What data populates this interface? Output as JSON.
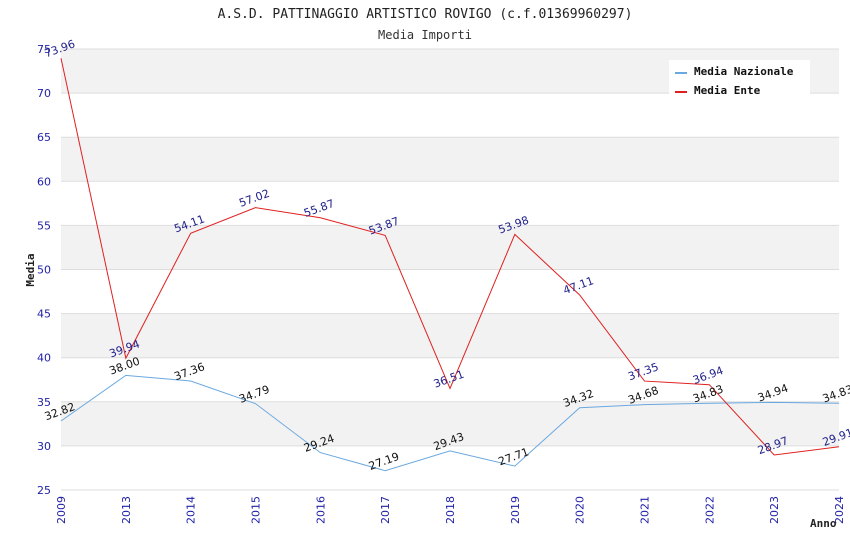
{
  "chart_data": {
    "type": "line",
    "title": "A.S.D. PATTINAGGIO ARTISTICO ROVIGO (c.f.01369960297)",
    "subtitle": "Media Importi",
    "xlabel": "Anno",
    "ylabel": "Media",
    "categories": [
      "2009",
      "2013",
      "2014",
      "2015",
      "2016",
      "2017",
      "2018",
      "2019",
      "2020",
      "2021",
      "2022",
      "2023",
      "2024"
    ],
    "ylim": [
      25,
      75
    ],
    "yticks": [
      "25",
      "30",
      "35",
      "40",
      "45",
      "50",
      "55",
      "60",
      "65",
      "70",
      "75"
    ],
    "grid": true,
    "legend_position": "top-right",
    "series": [
      {
        "name": "Media Nazionale",
        "color": "#6aa8e0",
        "label_color": "#111111",
        "values": [
          32.82,
          38.0,
          37.36,
          34.79,
          29.24,
          27.19,
          29.43,
          27.71,
          34.32,
          34.68,
          34.83,
          34.94,
          34.83
        ],
        "labels": [
          "32.82",
          "38.00",
          "37.36",
          "34.79",
          "29.24",
          "27.19",
          "29.43",
          "27.71",
          "34.32",
          "34.68",
          "34.83",
          "34.94",
          "34.83"
        ]
      },
      {
        "name": "Media Ente",
        "color": "#e02020",
        "label_color": "#1f1f8a",
        "values": [
          73.96,
          39.94,
          54.11,
          57.02,
          55.87,
          53.87,
          36.51,
          53.98,
          47.11,
          37.35,
          36.94,
          28.97,
          29.91
        ],
        "labels": [
          "73.96",
          "39.94",
          "54.11",
          "57.02",
          "55.87",
          "53.87",
          "36.51",
          "53.98",
          "47.11",
          "37.35",
          "36.94",
          "28.97",
          "29.91"
        ]
      }
    ]
  }
}
